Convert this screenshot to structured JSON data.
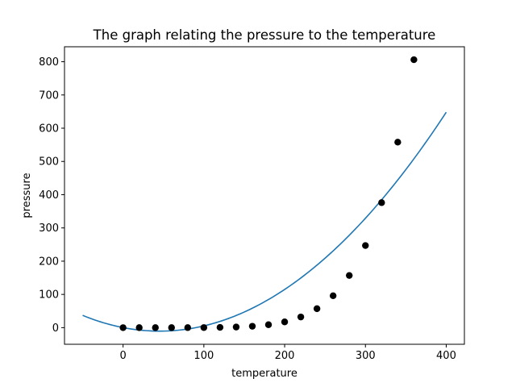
{
  "chart_data": {
    "type": "scatter",
    "title": "The graph relating the pressure to the temperature",
    "xlabel": "temperature",
    "ylabel": "pressure",
    "xlim": [
      -72.5,
      422.5
    ],
    "ylim": [
      -50,
      845
    ],
    "xticks": [
      0,
      100,
      200,
      300,
      400
    ],
    "yticks": [
      0,
      100,
      200,
      300,
      400,
      500,
      600,
      700,
      800
    ],
    "grid": false,
    "colors": {
      "points": "#000000",
      "fit_line": "#1f77b4",
      "axes": "#000000"
    },
    "series": [
      {
        "kind": "points",
        "x": [
          0,
          20,
          40,
          60,
          80,
          100,
          120,
          140,
          160,
          180,
          200,
          220,
          240,
          260,
          280,
          300,
          320,
          340,
          360
        ],
        "y": [
          0.0002,
          0.0012,
          0.006,
          0.03,
          0.09,
          0.27,
          0.75,
          1.85,
          4.2,
          8.8,
          17.3,
          32.1,
          57,
          96,
          157,
          247,
          376,
          558,
          806
        ]
      },
      {
        "kind": "line",
        "x_range": [
          -50,
          400
        ],
        "polynomial": [
          0.00523,
          -0.4725,
          0.2
        ]
      }
    ]
  }
}
